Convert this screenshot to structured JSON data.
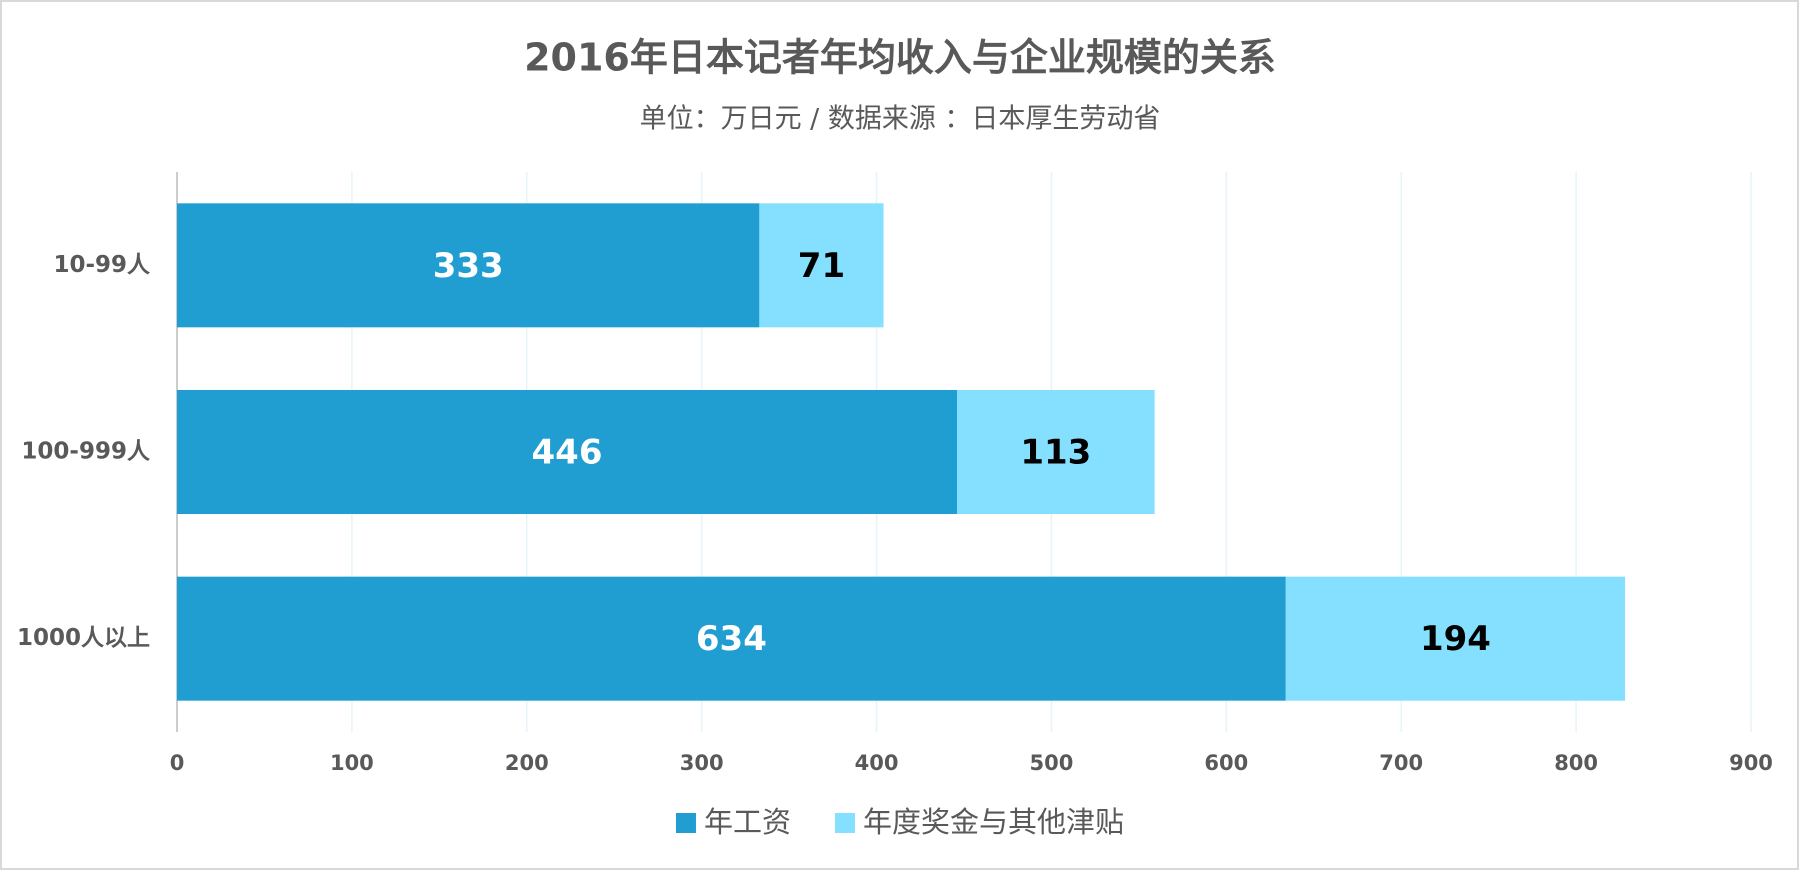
{
  "chart_data": {
    "type": "bar",
    "orientation": "horizontal",
    "stacked": true,
    "title": "2016年日本记者年均收入与企业规模的关系",
    "subtitle": "单位：万日元 / 数据来源 ：日本厚生劳动省",
    "categories": [
      "10-99人",
      "100-999人",
      "1000人以上"
    ],
    "series": [
      {
        "name": "年工资",
        "color": "#219ed1",
        "label_color": "#ffffff",
        "values": [
          333,
          446,
          634
        ]
      },
      {
        "name": "年度奖金与其他津贴",
        "color": "#84e0fe",
        "label_color": "#000000",
        "values": [
          71,
          113,
          194
        ]
      }
    ],
    "xlim": [
      0,
      900
    ],
    "xticks": [
      0,
      100,
      200,
      300,
      400,
      500,
      600,
      700,
      800,
      900
    ],
    "grid": true,
    "legend": "bottom"
  }
}
